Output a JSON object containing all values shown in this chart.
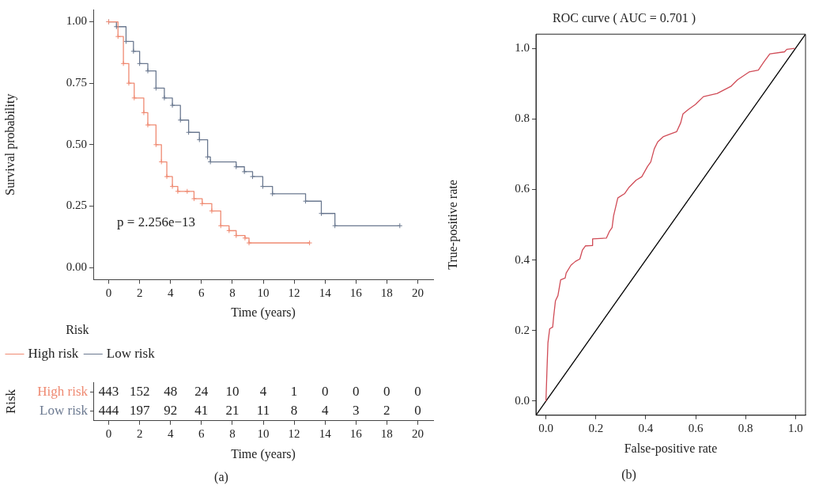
{
  "chart_data": [
    {
      "type": "step",
      "xlabel": "Time (years)",
      "ylabel": "Survival probability",
      "legend_title": "Risk",
      "legend": "bottom",
      "marker": "cross",
      "annotations": [
        "p = 2.256e−13"
      ],
      "xlim": [
        -1,
        21
      ],
      "xticks": [
        0,
        2,
        4,
        6,
        8,
        10,
        12,
        14,
        16,
        18,
        20
      ],
      "ylim": [
        -0.05,
        1.05
      ],
      "yticks": [
        {
          "value": 0,
          "label": "0.00"
        },
        {
          "value": 0.25,
          "label": "0.25"
        },
        {
          "value": 0.5,
          "label": "0.50"
        },
        {
          "value": 0.75,
          "label": "0.75"
        },
        {
          "value": 1,
          "label": "1.00"
        }
      ],
      "series": [
        {
          "name": "High risk",
          "color": "#ef8a72",
          "x": [
            0,
            0.6,
            0.95,
            1.3,
            1.65,
            2.27,
            2.53,
            3.06,
            3.41,
            3.76,
            4.12,
            4.47,
            5.08,
            5.52,
            6.05,
            6.67,
            7.25,
            7.79,
            8.25,
            8.82,
            9.08,
            13.0
          ],
          "values": [
            1,
            0.94,
            0.83,
            0.75,
            0.69,
            0.63,
            0.58,
            0.5,
            0.43,
            0.37,
            0.33,
            0.31,
            0.31,
            0.28,
            0.26,
            0.23,
            0.17,
            0.15,
            0.13,
            0.12,
            0.1,
            0.1
          ]
        },
        {
          "name": "Low risk",
          "color": "#6b7990",
          "x": [
            0,
            0.5,
            1.12,
            1.6,
            2.0,
            2.53,
            3.06,
            3.6,
            4.12,
            4.64,
            5.17,
            5.87,
            6.4,
            6.58,
            8.25,
            8.78,
            9.31,
            9.97,
            10.6,
            12.74,
            13.76,
            14.64,
            18.84
          ],
          "values": [
            1,
            0.98,
            0.92,
            0.88,
            0.83,
            0.8,
            0.73,
            0.69,
            0.66,
            0.6,
            0.55,
            0.52,
            0.45,
            0.43,
            0.41,
            0.39,
            0.37,
            0.33,
            0.3,
            0.27,
            0.22,
            0.17,
            0.17
          ]
        }
      ]
    },
    {
      "type": "heatmap",
      "xlabel": "Time (years)",
      "ylabel": "Risk",
      "data_labels": true,
      "annotations": [
        "(a)"
      ],
      "categories": [
        "0",
        "2",
        "4",
        "6",
        "8",
        "10",
        "12",
        "14",
        "16",
        "18",
        "20"
      ],
      "y_categories": [
        "High risk",
        "Low risk"
      ],
      "cells": [
        [
          443,
          152,
          48,
          24,
          10,
          4,
          1,
          0,
          0,
          0,
          0
        ],
        [
          444,
          197,
          92,
          41,
          21,
          11,
          8,
          4,
          3,
          2,
          0
        ]
      ]
    },
    {
      "type": "line",
      "title": "ROC curve ( AUC = 0.701 )",
      "xlabel": "False-positive rate",
      "ylabel": "True-positive rate",
      "annotations": [
        "(b)"
      ],
      "xlim": [
        -0.04,
        1.04
      ],
      "xticks": [
        {
          "value": 0,
          "label": "0.0"
        },
        {
          "value": 0.2,
          "label": "0.2"
        },
        {
          "value": 0.4,
          "label": "0.4"
        },
        {
          "value": 0.6,
          "label": "0.6"
        },
        {
          "value": 0.8,
          "label": "0.8"
        },
        {
          "value": 1,
          "label": "1.0"
        }
      ],
      "ylim": [
        -0.04,
        1.04
      ],
      "yticks": [
        {
          "value": 0,
          "label": "0.0"
        },
        {
          "value": 0.2,
          "label": "0.2"
        },
        {
          "value": 0.4,
          "label": "0.4"
        },
        {
          "value": 0.6,
          "label": "0.6"
        },
        {
          "value": 0.8,
          "label": "0.8"
        },
        {
          "value": 1,
          "label": "1.0"
        }
      ],
      "series": [
        {
          "color": "#d04c57",
          "x": [
            0,
            0.004,
            0.008,
            0.015,
            0.027,
            0.031,
            0.038,
            0.048,
            0.059,
            0.077,
            0.081,
            0.1,
            0.118,
            0.136,
            0.146,
            0.158,
            0.185,
            0.187,
            0.242,
            0.255,
            0.265,
            0.271,
            0.288,
            0.315,
            0.333,
            0.361,
            0.384,
            0.407,
            0.42,
            0.434,
            0.448,
            0.471,
            0.498,
            0.524,
            0.54,
            0.549,
            0.571,
            0.599,
            0.631,
            0.686,
            0.741,
            0.768,
            0.814,
            0.851,
            0.874,
            0.897,
            0.956,
            0.965,
            0.997
          ],
          "values": [
            0,
            0.086,
            0.165,
            0.205,
            0.21,
            0.24,
            0.284,
            0.299,
            0.344,
            0.349,
            0.363,
            0.385,
            0.396,
            0.403,
            0.428,
            0.44,
            0.441,
            0.46,
            0.462,
            0.482,
            0.492,
            0.525,
            0.576,
            0.588,
            0.606,
            0.626,
            0.636,
            0.665,
            0.678,
            0.715,
            0.735,
            0.75,
            0.757,
            0.764,
            0.789,
            0.814,
            0.827,
            0.841,
            0.863,
            0.872,
            0.892,
            0.911,
            0.933,
            0.938,
            0.962,
            0.984,
            0.99,
            0.997,
            1.0
          ]
        },
        {
          "color": "#000000",
          "x": [
            -0.04,
            1.04
          ],
          "values": [
            -0.04,
            1.04
          ]
        }
      ]
    }
  ]
}
